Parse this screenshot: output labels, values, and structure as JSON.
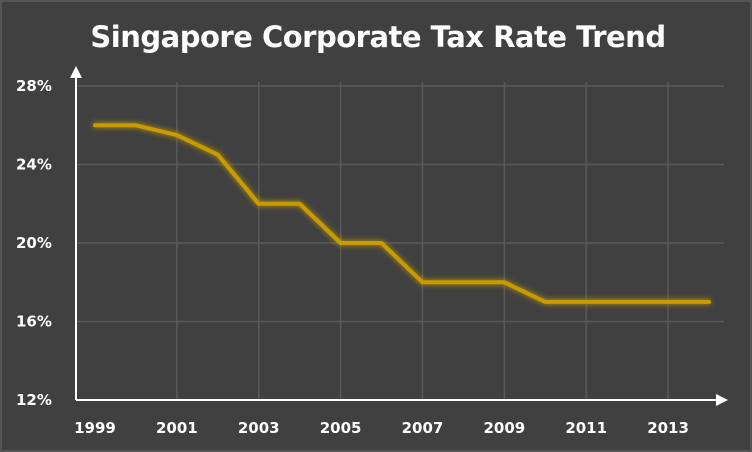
{
  "chart_data": {
    "type": "line",
    "title": "Singapore Corporate Tax Rate Trend",
    "xlabel": "",
    "ylabel": "",
    "x": [
      1999,
      2000,
      2001,
      2002,
      2003,
      2004,
      2005,
      2006,
      2007,
      2008,
      2009,
      2010,
      2011,
      2012,
      2013,
      2014
    ],
    "series": [
      {
        "values": [
          26,
          26,
          25.5,
          24.5,
          22,
          22,
          20,
          20,
          18,
          18,
          18,
          17,
          17,
          17,
          17,
          17
        ]
      }
    ],
    "xlim": [
      1999,
      2014
    ],
    "ylim": [
      12,
      28
    ],
    "x_tick_labels": [
      "1999",
      "2001",
      "2003",
      "2005",
      "2007",
      "2009",
      "2011",
      "2013"
    ],
    "y_tick_labels": [
      "12%",
      "16%",
      "20%",
      "24%",
      "28%"
    ],
    "grid": true,
    "legend": "none",
    "colors": {
      "background": "#404040",
      "line": "#c89b00",
      "line_glow": "#b8860b",
      "grid": "#5a5a5a",
      "axis": "#ffffff",
      "text": "#ffffff"
    }
  }
}
